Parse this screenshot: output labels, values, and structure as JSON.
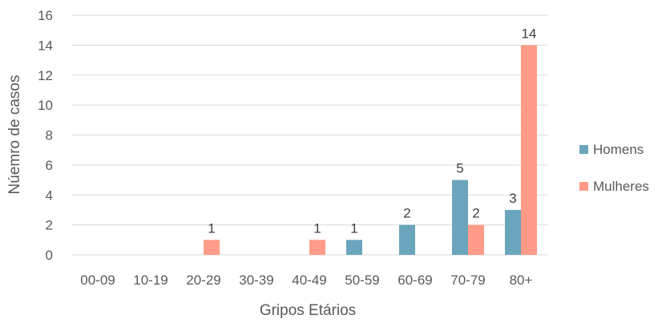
{
  "chart_data": {
    "type": "bar",
    "title": "",
    "xlabel": "Gripos Etários",
    "ylabel": "Núemro de casos",
    "ylim": [
      0,
      16
    ],
    "yticks": [
      0,
      2,
      4,
      6,
      8,
      10,
      12,
      14,
      16
    ],
    "grid": true,
    "legend_position": "right",
    "categories": [
      "00-09",
      "10-19",
      "20-29",
      "30-39",
      "40-49",
      "50-59",
      "60-69",
      "70-79",
      "80+"
    ],
    "series": [
      {
        "name": "Homens",
        "color": "#6aa5bd",
        "values": [
          0,
          0,
          0,
          0,
          0,
          1,
          2,
          5,
          3
        ],
        "labels": [
          "",
          "",
          "",
          "",
          "",
          "1",
          "2",
          "5",
          "3"
        ]
      },
      {
        "name": "Mulheres",
        "color": "#ff9b86",
        "values": [
          0,
          0,
          1,
          0,
          1,
          0,
          0,
          2,
          14
        ],
        "labels": [
          "",
          "",
          "1",
          "",
          "1",
          "",
          "",
          "2",
          "14"
        ]
      }
    ]
  }
}
